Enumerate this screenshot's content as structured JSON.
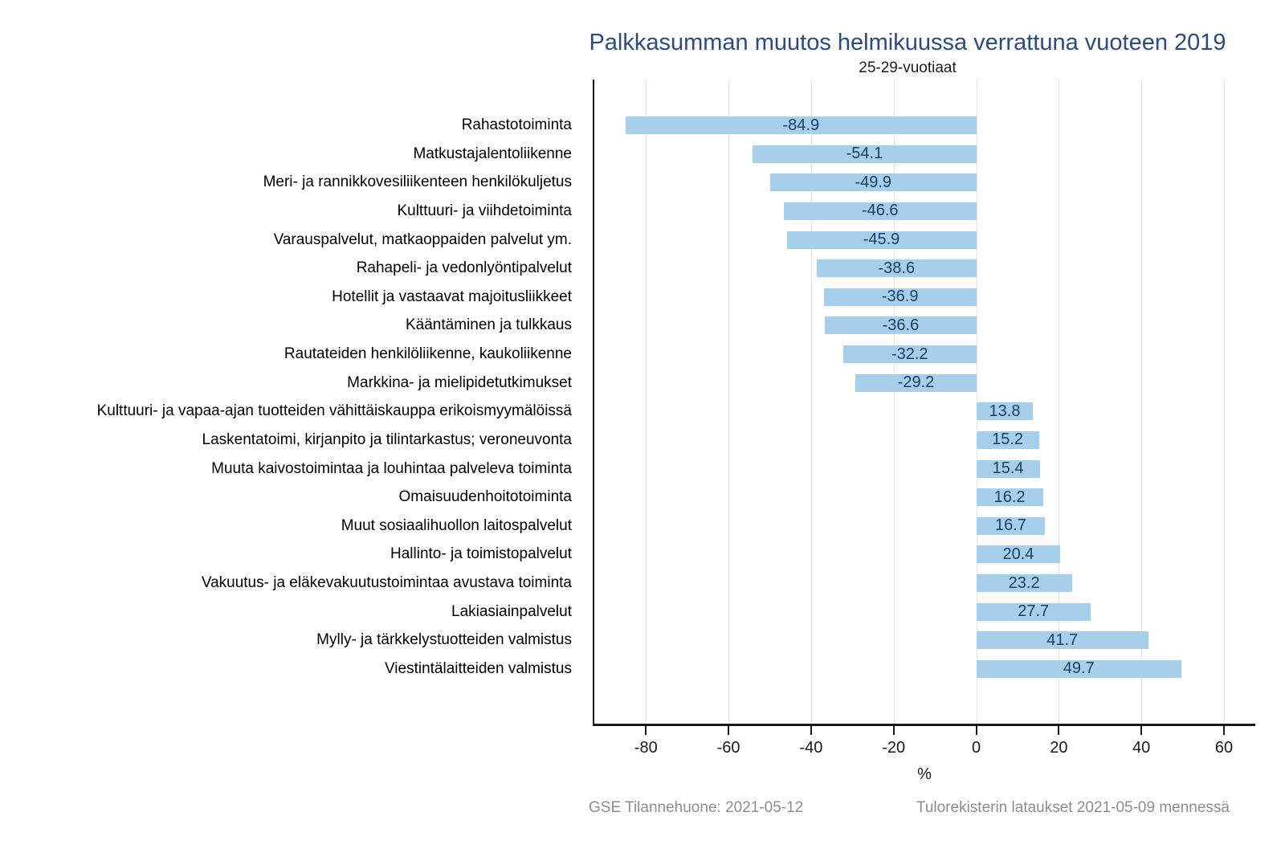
{
  "footer": {
    "left": "GSE Tilannehuone: 2021-05-12",
    "right": "Tulorekisterin lataukset 2021-05-09 mennessä"
  },
  "colors": {
    "bar_fill": "#a6cfec",
    "value_label": "#1f3e63",
    "title": "#2e4b7a",
    "axis": "#1a1a1a",
    "gridline": "#e3e3e3",
    "footer_text": "#8d8d8d"
  },
  "chart_data": {
    "type": "bar",
    "orientation": "horizontal",
    "title": "Palkkasumman muutos helmikuussa verrattuna vuoteen 2019",
    "subtitle": "25-29-vuotiaat",
    "xlabel": "%",
    "categories": [
      "Rahastotoiminta",
      "Matkustajalentoliikenne",
      "Meri- ja rannikkovesiliikenteen henkilökuljetus",
      "Kulttuuri- ja viihdetoiminta",
      "Varauspalvelut, matkaoppaiden palvelut ym.",
      "Rahapeli- ja vedonlyöntipalvelut",
      "Hotellit ja vastaavat majoitusliikkeet",
      "Kääntäminen ja tulkkaus",
      "Rautateiden henkilöliikenne, kaukoliikenne",
      "Markkina- ja mielipidetutkimukset",
      "Kulttuuri- ja vapaa-ajan tuotteiden vähittäiskauppa erikoismyymälöissä",
      "Laskentatoimi, kirjanpito ja tilintarkastus; veroneuvonta",
      "Muuta kaivostoimintaa ja louhintaa palveleva toiminta",
      "Omaisuudenhoitotoiminta",
      "Muut sosiaalihuollon laitospalvelut",
      "Hallinto- ja toimistopalvelut",
      "Vakuutus- ja eläkevakuutustoimintaa avustava toiminta",
      "Lakiasiainpalvelut",
      "Mylly- ja tärkkelystuotteiden valmistus",
      "Viestintälaitteiden valmistus"
    ],
    "values": [
      -84.9,
      -54.1,
      -49.9,
      -46.6,
      -45.9,
      -38.6,
      -36.9,
      -36.6,
      -32.2,
      -29.2,
      13.8,
      15.2,
      15.4,
      16.2,
      16.7,
      20.4,
      23.2,
      27.7,
      41.7,
      49.7
    ],
    "x_ticks": [
      -80,
      -60,
      -40,
      -20,
      0,
      20,
      40,
      60
    ],
    "xlim": [
      -92.5,
      67.4
    ],
    "grid": "vertical-only",
    "legend": "none",
    "value_labels": "centered-in-bar"
  }
}
